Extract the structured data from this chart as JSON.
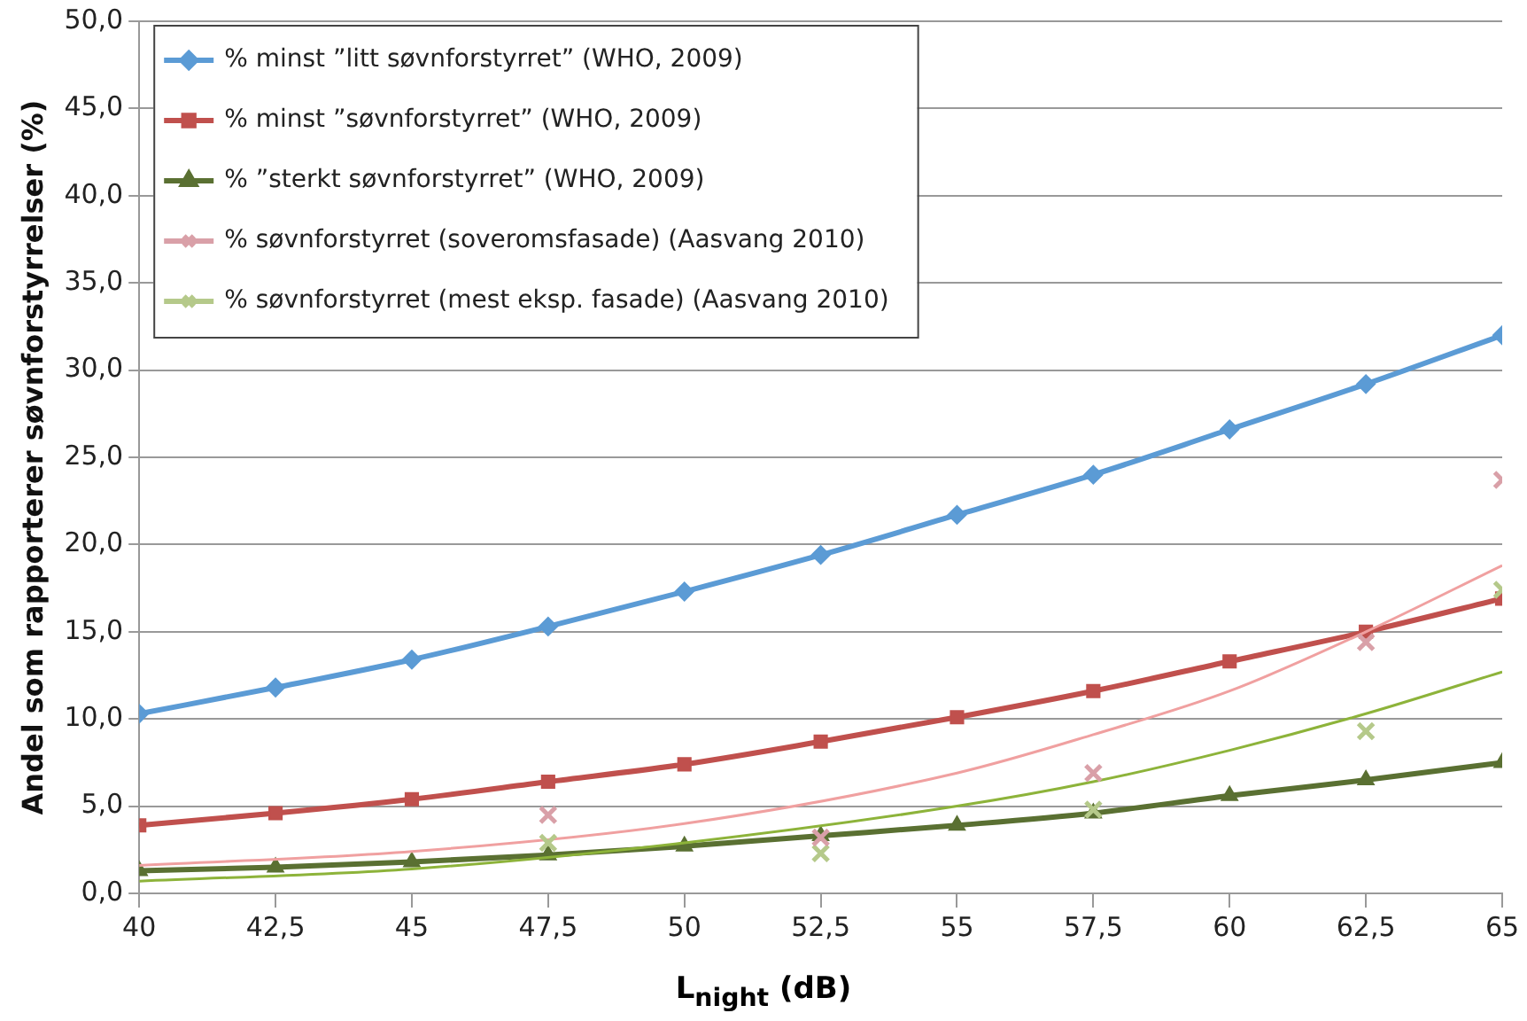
{
  "chart_data": {
    "type": "line",
    "xlabel": "L$_{night}$ (dB)",
    "ylabel": "Andel som rapporterer søvnforstyrrelser (%)",
    "xlim": [
      40,
      65
    ],
    "xticks": [
      40,
      {
        "value": 42.5,
        "label": "42,5"
      },
      45,
      {
        "value": 47.5,
        "label": "47,5"
      },
      50,
      {
        "value": 52.5,
        "label": "52,5"
      },
      55,
      {
        "value": 57.5,
        "label": "57,5"
      },
      60,
      {
        "value": 62.5,
        "label": "62,5"
      },
      65
    ],
    "ylim": [
      0,
      50
    ],
    "yticks": [
      {
        "value": 0,
        "label": "0,0"
      },
      {
        "value": 5,
        "label": "5,0"
      },
      {
        "value": 10,
        "label": "10,0"
      },
      {
        "value": 15,
        "label": "15,0"
      },
      {
        "value": 20,
        "label": "20,0"
      },
      {
        "value": 25,
        "label": "25,0"
      },
      {
        "value": 30,
        "label": "30,0"
      },
      {
        "value": 35,
        "label": "35,0"
      },
      {
        "value": 40,
        "label": "40,0"
      },
      {
        "value": 45,
        "label": "45,0"
      },
      {
        "value": 50,
        "label": "50,0"
      }
    ],
    "grid": "y",
    "legend": "top left",
    "line_style": "solid",
    "x": [
      40,
      42.5,
      45,
      47.5,
      50,
      52.5,
      55,
      57.5,
      60,
      62.5,
      65
    ],
    "series": [
      {
        "name": "% minst ”litt søvnforstyrret” (WHO, 2009)",
        "marker": "diamond",
        "color": "#5b9bd5",
        "values": [
          10.3,
          11.8,
          13.4,
          15.3,
          17.3,
          19.4,
          21.7,
          24.0,
          26.6,
          29.2,
          32.0
        ]
      },
      {
        "name": "% minst ”søvnforstyrret” (WHO, 2009)",
        "marker": "square",
        "color": "#c0504d",
        "values": [
          3.9,
          4.6,
          5.4,
          6.4,
          7.4,
          8.7,
          10.1,
          11.6,
          13.3,
          15.0,
          16.9
        ]
      },
      {
        "name": "% ”sterkt søvnforstyrret” (WHO, 2009)",
        "marker": "triangle",
        "color": "#5a7032",
        "values": [
          1.3,
          1.5,
          1.8,
          2.2,
          2.7,
          3.3,
          3.9,
          4.6,
          5.6,
          6.5,
          7.5
        ]
      },
      {
        "name": "% søvnforstyrret (soveromsfasade) (Aasvang 2010)",
        "type": "scatter",
        "marker": "cross",
        "color": "#d9a0a8",
        "x": [
          47.5,
          52.5,
          57.5,
          62.5,
          65
        ],
        "values": [
          4.5,
          3.2,
          6.9,
          14.4,
          23.7
        ]
      },
      {
        "name": "% søvnforstyrret (mest eksp. fasade) (Aasvang 2010)",
        "type": "scatter",
        "marker": "cross",
        "color": "#b5c98a",
        "x": [
          47.5,
          52.5,
          57.5,
          62.5,
          65
        ],
        "values": [
          2.9,
          2.3,
          4.8,
          9.3,
          17.4
        ]
      },
      {
        "marker": "none",
        "color": "#f0a0a0",
        "x": [
          40,
          45,
          50,
          55,
          57.5,
          60,
          62.5,
          65
        ],
        "values": [
          1.6,
          2.4,
          4.0,
          6.9,
          9.1,
          11.6,
          15.0,
          18.8
        ]
      },
      {
        "marker": "none",
        "color": "#8db33a",
        "x": [
          40,
          45,
          50,
          55,
          57.5,
          60,
          62.5,
          65
        ],
        "values": [
          0.7,
          1.4,
          2.9,
          5.0,
          6.4,
          8.2,
          10.3,
          12.7
        ]
      }
    ]
  }
}
